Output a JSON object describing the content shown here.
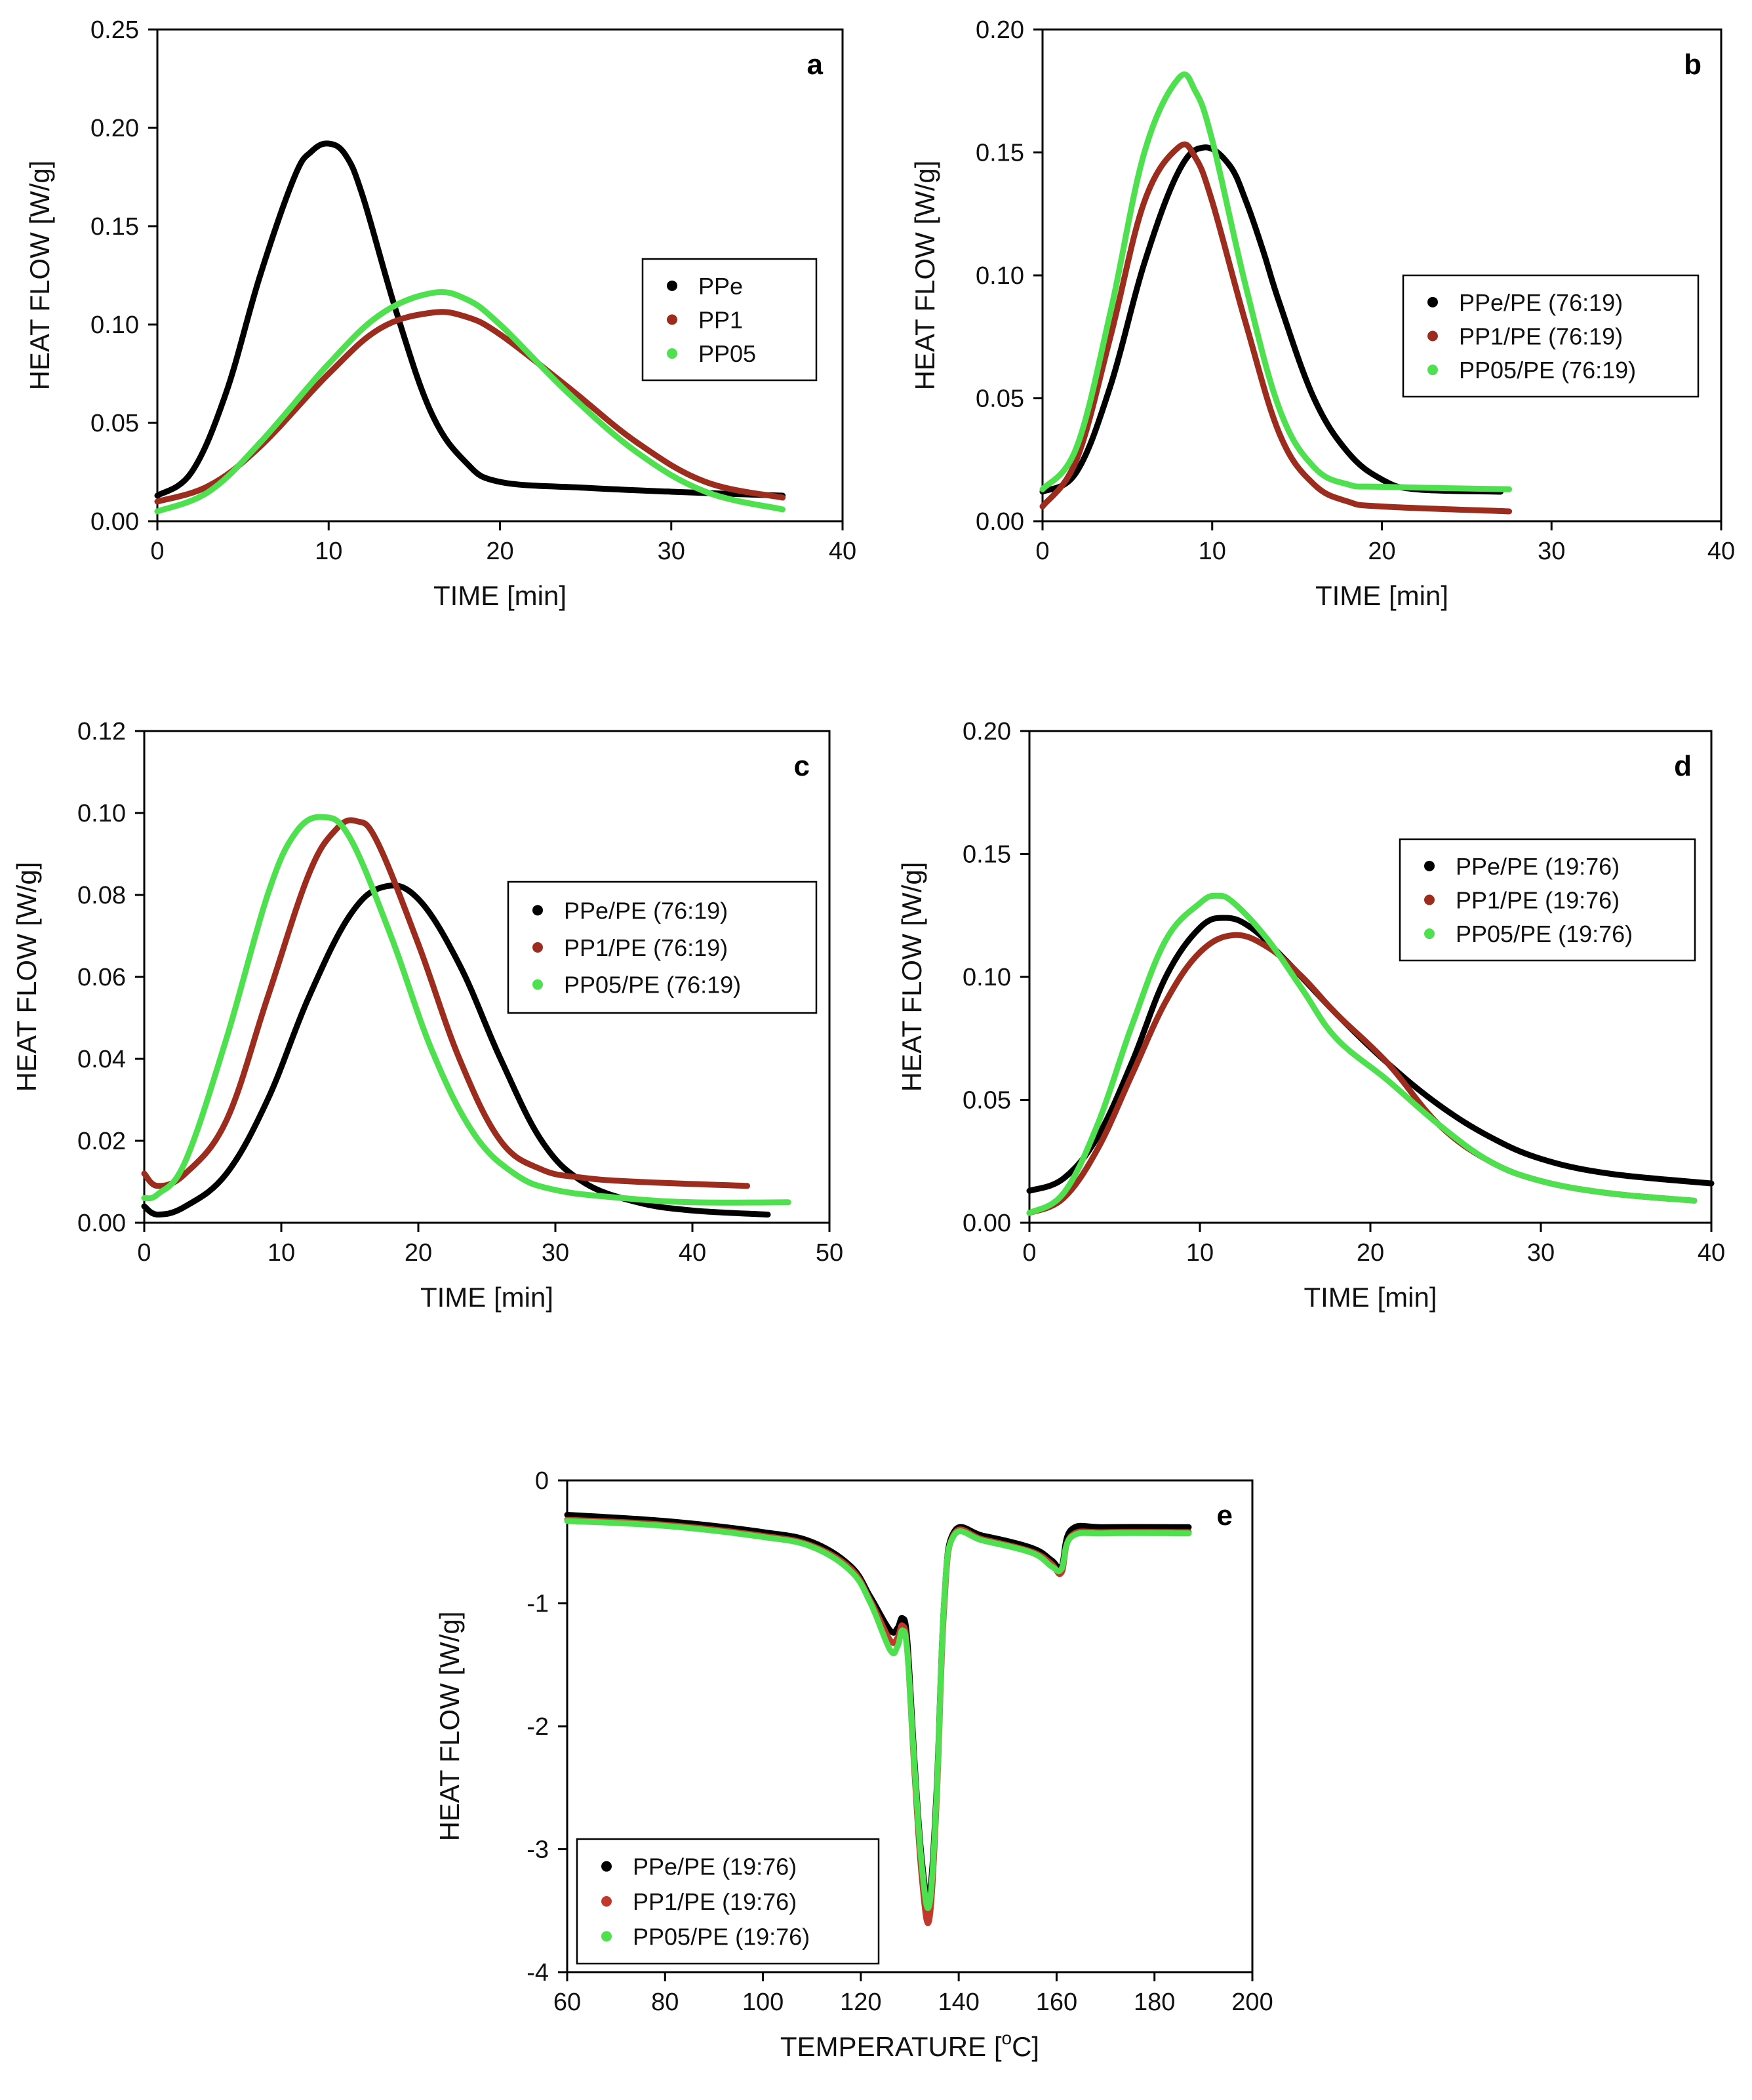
{
  "chart_data": [
    {
      "type": "line",
      "panel": "a",
      "xlabel": "TIME [min]",
      "ylabel": "HEAT FLOW [W/g]",
      "xlim": [
        0,
        40
      ],
      "ylim": [
        0,
        0.25
      ],
      "xticks": [
        "0",
        "10",
        "20",
        "30",
        "40"
      ],
      "yticks": [
        "0.00",
        "0.05",
        "0.10",
        "0.15",
        "0.20",
        "0.25"
      ],
      "legend_position": "center-right",
      "series": [
        {
          "name": "PPe",
          "color": "#000000",
          "x": [
            0,
            2,
            4,
            6,
            8,
            9,
            10,
            11,
            12,
            14,
            16,
            18,
            20,
            25,
            30,
            36.5
          ],
          "y": [
            0.013,
            0.025,
            0.065,
            0.125,
            0.175,
            0.188,
            0.192,
            0.186,
            0.165,
            0.105,
            0.055,
            0.03,
            0.02,
            0.017,
            0.015,
            0.013
          ]
        },
        {
          "name": "PP1",
          "color": "#9b2c1e",
          "x": [
            0,
            3,
            6,
            10,
            13,
            16,
            18,
            20,
            24,
            28,
            32,
            36.5
          ],
          "y": [
            0.01,
            0.018,
            0.038,
            0.075,
            0.098,
            0.106,
            0.104,
            0.095,
            0.068,
            0.04,
            0.02,
            0.012
          ]
        },
        {
          "name": "PP05",
          "color": "#4fe04f",
          "x": [
            0,
            3,
            6,
            10,
            13,
            16,
            18,
            20,
            24,
            28,
            32,
            36.5
          ],
          "y": [
            0.005,
            0.015,
            0.04,
            0.08,
            0.105,
            0.116,
            0.113,
            0.1,
            0.065,
            0.035,
            0.015,
            0.006
          ]
        }
      ]
    },
    {
      "type": "line",
      "panel": "b",
      "xlabel": "TIME [min]",
      "ylabel": "HEAT FLOW [W/g]",
      "xlim": [
        0,
        40
      ],
      "ylim": [
        0,
        0.2
      ],
      "xticks": [
        "0",
        "10",
        "20",
        "30",
        "40"
      ],
      "yticks": [
        "0.00",
        "0.05",
        "0.10",
        "0.15",
        "0.20"
      ],
      "legend_position": "center-right",
      "series": [
        {
          "name": "PPe/PE (76:19)",
          "color": "#000000",
          "x": [
            0,
            2,
            4,
            6,
            8,
            9.5,
            11,
            12,
            13,
            14,
            16,
            18,
            20,
            22,
            27
          ],
          "y": [
            0.012,
            0.02,
            0.055,
            0.105,
            0.142,
            0.152,
            0.145,
            0.13,
            0.11,
            0.088,
            0.05,
            0.028,
            0.017,
            0.013,
            0.012
          ]
        },
        {
          "name": "PP1/PE (76:19)",
          "color": "#9b2c1e",
          "x": [
            0,
            2,
            4,
            6,
            8,
            9,
            10,
            12,
            14,
            16,
            18,
            20,
            27.5
          ],
          "y": [
            0.006,
            0.025,
            0.075,
            0.13,
            0.152,
            0.148,
            0.13,
            0.08,
            0.035,
            0.015,
            0.008,
            0.006,
            0.004
          ]
        },
        {
          "name": "PP05/PE (76:19)",
          "color": "#4fe04f",
          "x": [
            0,
            2,
            4,
            6,
            8,
            9,
            10,
            12,
            14,
            16,
            18,
            20,
            27.5
          ],
          "y": [
            0.013,
            0.03,
            0.085,
            0.15,
            0.18,
            0.175,
            0.155,
            0.095,
            0.045,
            0.022,
            0.015,
            0.014,
            0.013
          ]
        }
      ]
    },
    {
      "type": "line",
      "panel": "c",
      "xlabel": "TIME [min]",
      "ylabel": "HEAT FLOW [W/g]",
      "xlim": [
        0,
        50
      ],
      "ylim": [
        0,
        0.12
      ],
      "xticks": [
        "0",
        "10",
        "20",
        "30",
        "40",
        "50"
      ],
      "yticks": [
        "0.00",
        "0.02",
        "0.04",
        "0.06",
        "0.08",
        "0.10",
        "0.12"
      ],
      "legend_position": "center-right",
      "series": [
        {
          "name": "PPe/PE (76:19)",
          "color": "#000000",
          "x": [
            0,
            1,
            3,
            6,
            9,
            12,
            15,
            17.5,
            20,
            23,
            26,
            29,
            32,
            36,
            40,
            45.5
          ],
          "y": [
            0.004,
            0.002,
            0.004,
            0.012,
            0.03,
            0.055,
            0.075,
            0.082,
            0.079,
            0.063,
            0.04,
            0.02,
            0.01,
            0.005,
            0.003,
            0.002
          ]
        },
        {
          "name": "PP1/PE (76:19)",
          "color": "#9b2c1e",
          "x": [
            0,
            1,
            3,
            6,
            9,
            12,
            14,
            15.5,
            17,
            20,
            23,
            26,
            29,
            32,
            36,
            44
          ],
          "y": [
            0.012,
            0.009,
            0.012,
            0.025,
            0.055,
            0.085,
            0.096,
            0.098,
            0.093,
            0.068,
            0.04,
            0.02,
            0.013,
            0.011,
            0.01,
            0.009
          ]
        },
        {
          "name": "PP05/PE (76:19)",
          "color": "#4fe04f",
          "x": [
            0,
            1,
            3,
            6,
            9,
            11,
            13,
            15,
            18,
            21,
            24,
            27,
            30,
            35,
            40,
            47
          ],
          "y": [
            0.006,
            0.007,
            0.015,
            0.045,
            0.08,
            0.095,
            0.099,
            0.094,
            0.07,
            0.042,
            0.022,
            0.012,
            0.008,
            0.006,
            0.005,
            0.005
          ]
        }
      ]
    },
    {
      "type": "line",
      "panel": "d",
      "xlabel": "TIME [min]",
      "ylabel": "HEAT FLOW [W/g]",
      "xlim": [
        0,
        40
      ],
      "ylim": [
        0,
        0.2
      ],
      "xticks": [
        "0",
        "10",
        "20",
        "30",
        "40"
      ],
      "yticks": [
        "0.00",
        "0.05",
        "0.10",
        "0.15",
        "0.20"
      ],
      "legend_position": "top-right",
      "series": [
        {
          "name": "PPe/PE (19:76)",
          "color": "#000000",
          "x": [
            0,
            2,
            4,
            6,
            8,
            10,
            11.5,
            13,
            15,
            18,
            21,
            24,
            27,
            30,
            34,
            40
          ],
          "y": [
            0.013,
            0.018,
            0.035,
            0.065,
            0.1,
            0.12,
            0.124,
            0.12,
            0.107,
            0.085,
            0.065,
            0.048,
            0.035,
            0.026,
            0.02,
            0.016
          ]
        },
        {
          "name": "PP1/PE (19:76)",
          "color": "#9b2c1e",
          "x": [
            0,
            2,
            4,
            6,
            8,
            10,
            12,
            14,
            16,
            18,
            21,
            24,
            27,
            30,
            34,
            39
          ],
          "y": [
            0.004,
            0.01,
            0.03,
            0.06,
            0.09,
            0.11,
            0.117,
            0.112,
            0.1,
            0.085,
            0.065,
            0.04,
            0.025,
            0.017,
            0.012,
            0.009
          ]
        },
        {
          "name": "PP05/PE (19:76)",
          "color": "#4fe04f",
          "x": [
            0,
            2,
            4,
            6,
            8,
            10,
            11,
            12,
            14,
            16,
            18,
            21,
            24,
            27,
            30,
            34,
            39
          ],
          "y": [
            0.004,
            0.012,
            0.04,
            0.08,
            0.115,
            0.13,
            0.133,
            0.13,
            0.115,
            0.095,
            0.075,
            0.058,
            0.04,
            0.025,
            0.017,
            0.012,
            0.009
          ]
        }
      ]
    },
    {
      "type": "line",
      "panel": "e",
      "xlabel_main": "TEMPERATURE [",
      "xlabel_sup": "o",
      "xlabel_end": "C]",
      "ylabel": "HEAT FLOW [W/g]",
      "xlim": [
        60,
        200
      ],
      "ylim": [
        -4,
        0
      ],
      "xticks": [
        "60",
        "80",
        "100",
        "120",
        "140",
        "160",
        "180",
        "200"
      ],
      "yticks": [
        "-4",
        "-3",
        "-2",
        "-1",
        "0"
      ],
      "legend_position": "bottom-left",
      "series": [
        {
          "name": "PPe/PE (19:76)",
          "color": "#000000",
          "x": [
            60,
            80,
            100,
            110,
            118,
            122,
            126,
            127.5,
            128.5,
            129.5,
            131,
            132.5,
            134,
            135.5,
            137,
            139,
            145,
            155,
            159,
            161,
            163,
            170,
            187
          ],
          "y": [
            -0.28,
            -0.33,
            -0.42,
            -0.5,
            -0.7,
            -0.95,
            -1.22,
            -1.2,
            -1.12,
            -1.3,
            -2.3,
            -3.1,
            -3.38,
            -2.5,
            -1.0,
            -0.42,
            -0.45,
            -0.55,
            -0.65,
            -0.7,
            -0.4,
            -0.38,
            -0.38
          ]
        },
        {
          "name": "PP1/PE (19:76)",
          "color": "#c0392b",
          "x": [
            60,
            80,
            100,
            110,
            118,
            122,
            126,
            127.5,
            128.5,
            129.5,
            131,
            132.5,
            134,
            135.5,
            137,
            139,
            145,
            155,
            159,
            161,
            163,
            170,
            187
          ],
          "y": [
            -0.32,
            -0.36,
            -0.45,
            -0.53,
            -0.72,
            -0.98,
            -1.3,
            -1.28,
            -1.18,
            -1.38,
            -2.4,
            -3.25,
            -3.57,
            -2.6,
            -1.05,
            -0.44,
            -0.48,
            -0.58,
            -0.68,
            -0.75,
            -0.45,
            -0.42,
            -0.42
          ]
        },
        {
          "name": "PP05/PE (19:76)",
          "color": "#4fe04f",
          "x": [
            60,
            80,
            100,
            110,
            118,
            122,
            126,
            127.5,
            128.5,
            129.5,
            131,
            132.5,
            134,
            135.5,
            137,
            139,
            145,
            155,
            159,
            161,
            163,
            170,
            187
          ],
          "y": [
            -0.33,
            -0.37,
            -0.46,
            -0.54,
            -0.74,
            -1.0,
            -1.38,
            -1.35,
            -1.22,
            -1.4,
            -2.35,
            -3.15,
            -3.45,
            -2.55,
            -1.0,
            -0.45,
            -0.49,
            -0.59,
            -0.7,
            -0.72,
            -0.46,
            -0.43,
            -0.43
          ]
        }
      ]
    }
  ]
}
